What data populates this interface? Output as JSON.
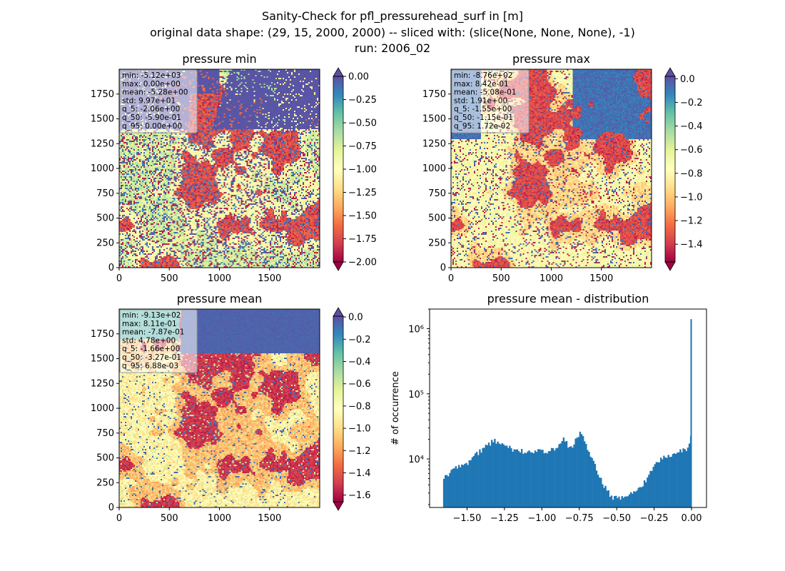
{
  "figure": {
    "title_lines": [
      "Sanity-Check for pfl_pressurehead_surf in [m]",
      "original data shape: (29, 15, 2000, 2000) -- sliced with: (slice(None, None, None), -1)",
      "run: 2006_02"
    ]
  },
  "panels": [
    {
      "title": "pressure min",
      "stats": [
        "min: -5.12e+03",
        "max: 0.00e+00",
        "mean: -5.28e+00",
        "std: 9.97e+01",
        "q_5: -2.06e+00",
        "q_50: -5.90e-01",
        "q_95: 0.00e+00"
      ],
      "x_ticks": [
        "0",
        "500",
        "1000",
        "1500"
      ],
      "y_ticks": [
        "0",
        "250",
        "500",
        "750",
        "1000",
        "1250",
        "1500",
        "1750"
      ],
      "colorbar": {
        "vmin": -2.0,
        "vmax": 0.0,
        "extend": "both",
        "ticks": [
          0.0,
          -0.25,
          -0.5,
          -0.75,
          -1.0,
          -1.25,
          -1.5,
          -1.75,
          -2.0
        ],
        "tick_labels": [
          "0.00",
          "−0.25",
          "−0.50",
          "−0.75",
          "−1.00",
          "−1.25",
          "−1.50",
          "−1.75",
          "−2.00"
        ]
      }
    },
    {
      "title": "pressure max",
      "stats": [
        "min: -8.76e+02",
        "max: 8.42e-01",
        "mean: -5.08e-01",
        "std: 1.91e+00",
        "q_5: -1.55e+00",
        "q_50: -1.15e-01",
        "q_95: 1.72e-02"
      ],
      "x_ticks": [
        "0",
        "500",
        "1000",
        "1500"
      ],
      "y_ticks": [
        "0",
        "250",
        "500",
        "750",
        "1000",
        "1250",
        "1500",
        "1750"
      ],
      "colorbar": {
        "vmin": -1.55,
        "vmax": 0.02,
        "extend": "both",
        "ticks": [
          0.0,
          -0.2,
          -0.4,
          -0.6,
          -0.8,
          -1.0,
          -1.2,
          -1.4
        ],
        "tick_labels": [
          "0.0",
          "−0.2",
          "−0.4",
          "−0.6",
          "−0.8",
          "−1.0",
          "−1.2",
          "−1.4"
        ]
      }
    },
    {
      "title": "pressure mean",
      "stats": [
        "min: -9.13e+02",
        "max: 8.11e-01",
        "mean: -7.87e-01",
        "std: 4.78e+00",
        "q_5: -1.66e+00",
        "q_50: -3.27e-01",
        "q_95: 6.88e-03"
      ],
      "x_ticks": [
        "0",
        "500",
        "1000",
        "1500"
      ],
      "y_ticks": [
        "0",
        "250",
        "500",
        "750",
        "1000",
        "1250",
        "1500",
        "1750"
      ],
      "colorbar": {
        "vmin": -1.66,
        "vmax": 0.007,
        "extend": "both",
        "ticks": [
          0.0,
          -0.2,
          -0.4,
          -0.6,
          -0.8,
          -1.0,
          -1.2,
          -1.4,
          -1.6
        ],
        "tick_labels": [
          "0.0",
          "−0.2",
          "−0.4",
          "−0.6",
          "−0.8",
          "−1.0",
          "−1.2",
          "−1.4",
          "−1.6"
        ]
      }
    }
  ],
  "chart_data": [
    {
      "type": "heatmap",
      "title": "pressure min",
      "xlim": [
        0,
        2000
      ],
      "ylim": [
        0,
        2000
      ],
      "colormap": "Spectral",
      "vmin": -2.0,
      "vmax": 0.0
    },
    {
      "type": "heatmap",
      "title": "pressure max",
      "xlim": [
        0,
        2000
      ],
      "ylim": [
        0,
        2000
      ],
      "colormap": "Spectral",
      "vmin": -1.55,
      "vmax": 0.02
    },
    {
      "type": "heatmap",
      "title": "pressure mean",
      "xlim": [
        0,
        2000
      ],
      "ylim": [
        0,
        2000
      ],
      "colormap": "Spectral",
      "vmin": -1.66,
      "vmax": 0.007
    },
    {
      "type": "bar",
      "title": "pressure mean - distribution",
      "xlabel": "",
      "ylabel": "# of occurrence",
      "yscale": "log",
      "xlim": [
        -1.75,
        0.1
      ],
      "ylim": [
        1800,
        2000000
      ],
      "x_ticks": [
        -1.5,
        -1.25,
        -1.0,
        -0.75,
        -0.5,
        -0.25,
        0.0
      ],
      "x_tick_labels": [
        "−1.50",
        "−1.25",
        "−1.00",
        "−0.75",
        "−0.50",
        "−0.25",
        "0.00"
      ],
      "y_ticks": [
        10000,
        100000,
        1000000
      ],
      "y_tick_labels": [
        "10⁴",
        "10⁵",
        "10⁶"
      ],
      "bin_start": -1.66,
      "bin_width": 0.01,
      "bar_color": "#1f77b4",
      "anchors": [
        [
          -1.66,
          5200
        ],
        [
          -1.64,
          5600
        ],
        [
          -1.62,
          6000
        ],
        [
          -1.58,
          7200
        ],
        [
          -1.55,
          7500
        ],
        [
          -1.5,
          8600
        ],
        [
          -1.45,
          11000
        ],
        [
          -1.4,
          14000
        ],
        [
          -1.35,
          17000
        ],
        [
          -1.32,
          19000
        ],
        [
          -1.28,
          17500
        ],
        [
          -1.24,
          16000
        ],
        [
          -1.2,
          14000
        ],
        [
          -1.15,
          13500
        ],
        [
          -1.1,
          12500
        ],
        [
          -1.05,
          13000
        ],
        [
          -1.0,
          13000
        ],
        [
          -0.97,
          12000
        ],
        [
          -0.93,
          14000
        ],
        [
          -0.89,
          16000
        ],
        [
          -0.86,
          19500
        ],
        [
          -0.84,
          20000
        ],
        [
          -0.82,
          15000
        ],
        [
          -0.8,
          14500
        ],
        [
          -0.78,
          19000
        ],
        [
          -0.76,
          23000
        ],
        [
          -0.74,
          25000
        ],
        [
          -0.72,
          21000
        ],
        [
          -0.69,
          14000
        ],
        [
          -0.66,
          10000
        ],
        [
          -0.63,
          6500
        ],
        [
          -0.6,
          4500
        ],
        [
          -0.57,
          3400
        ],
        [
          -0.54,
          2700
        ],
        [
          -0.51,
          2500
        ],
        [
          -0.48,
          2550
        ],
        [
          -0.45,
          2700
        ],
        [
          -0.42,
          2800
        ],
        [
          -0.38,
          3000
        ],
        [
          -0.34,
          3700
        ],
        [
          -0.3,
          5000
        ],
        [
          -0.26,
          7000
        ],
        [
          -0.22,
          9500
        ],
        [
          -0.18,
          11000
        ],
        [
          -0.12,
          12000
        ],
        [
          -0.06,
          13500
        ],
        [
          -0.03,
          14500
        ],
        [
          -0.01,
          19000
        ],
        [
          0.0,
          30000
        ]
      ],
      "spike": {
        "x": 0.0,
        "count": 1400000
      }
    }
  ]
}
